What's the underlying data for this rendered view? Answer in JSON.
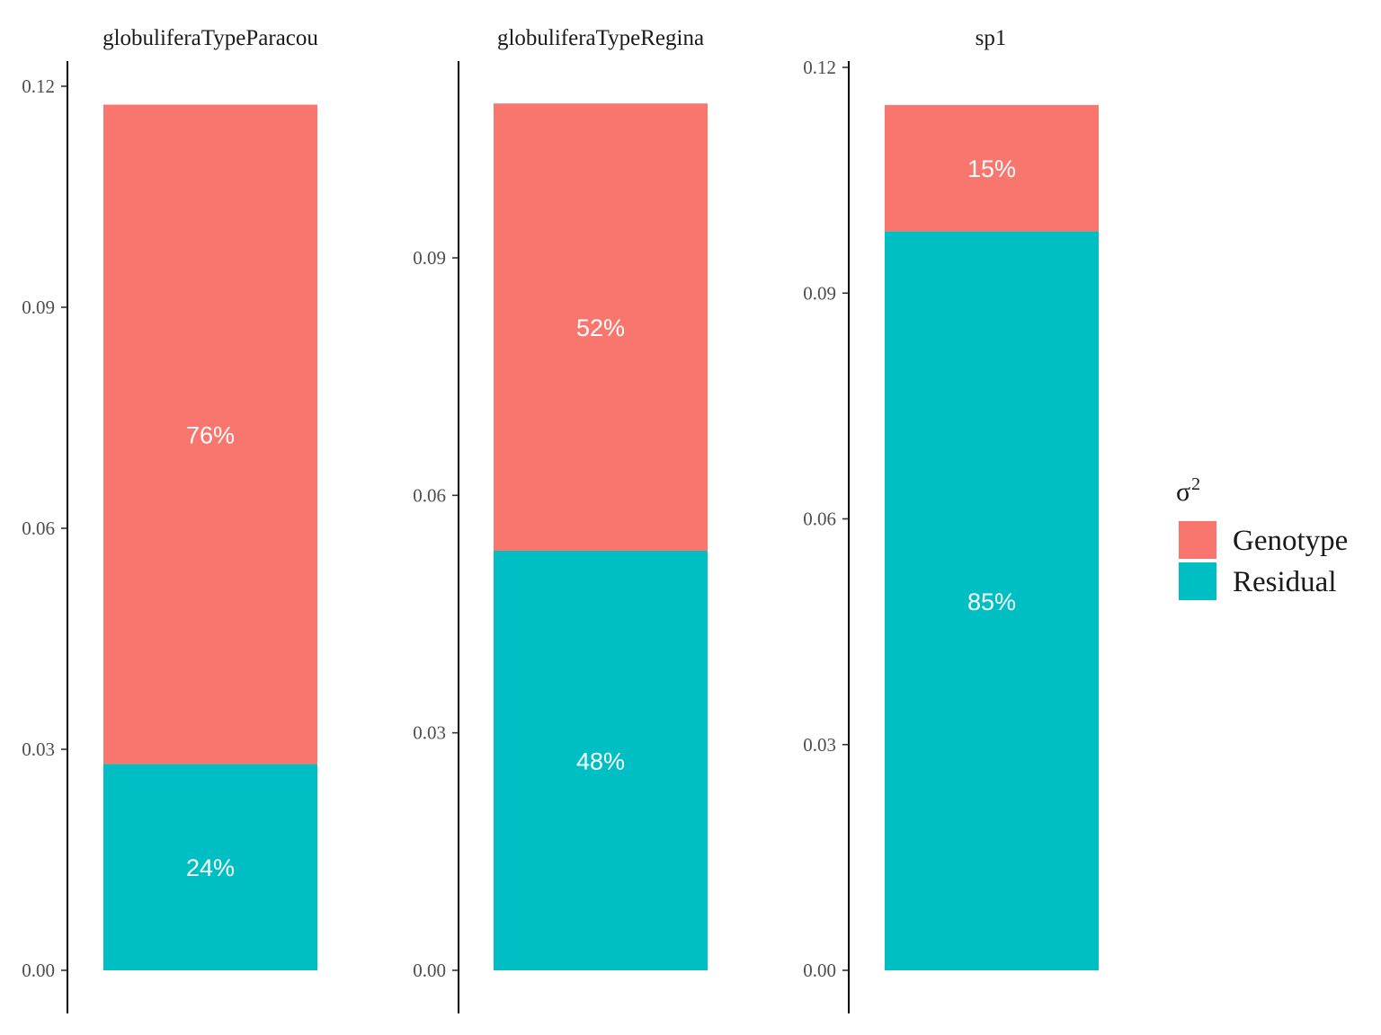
{
  "chart_data": {
    "type": "bar",
    "stacked": true,
    "legend": {
      "title": "σ",
      "title_superscript": "2",
      "position": "right",
      "entries": [
        {
          "label": "Genotype",
          "color": "#F8766D"
        },
        {
          "label": "Residual",
          "color": "#00BFC4"
        }
      ]
    },
    "facets": [
      {
        "title": "globuliferaTypeParacou",
        "ylim": [
          0,
          0.12
        ],
        "yticks": [
          "0.00",
          "0.03",
          "0.06",
          "0.09",
          "0.12"
        ],
        "segments": [
          {
            "series": "Residual",
            "value": 0.028,
            "label": "24%"
          },
          {
            "series": "Genotype",
            "value": 0.0895,
            "label": "76%"
          }
        ]
      },
      {
        "title": "globuliferaTypeRegina",
        "ylim": [
          0,
          0.11
        ],
        "yticks": [
          "0.00",
          "0.03",
          "0.06",
          "0.09"
        ],
        "segments": [
          {
            "series": "Residual",
            "value": 0.053,
            "label": "48%"
          },
          {
            "series": "Genotype",
            "value": 0.0565,
            "label": "52%"
          }
        ]
      },
      {
        "title": "sp1",
        "ylim": [
          0,
          0.12
        ],
        "yticks": [
          "0.00",
          "0.03",
          "0.06",
          "0.09",
          "0.12"
        ],
        "segments": [
          {
            "series": "Residual",
            "value": 0.0982,
            "label": "85%"
          },
          {
            "series": "Genotype",
            "value": 0.0168,
            "label": "15%"
          }
        ]
      }
    ]
  }
}
